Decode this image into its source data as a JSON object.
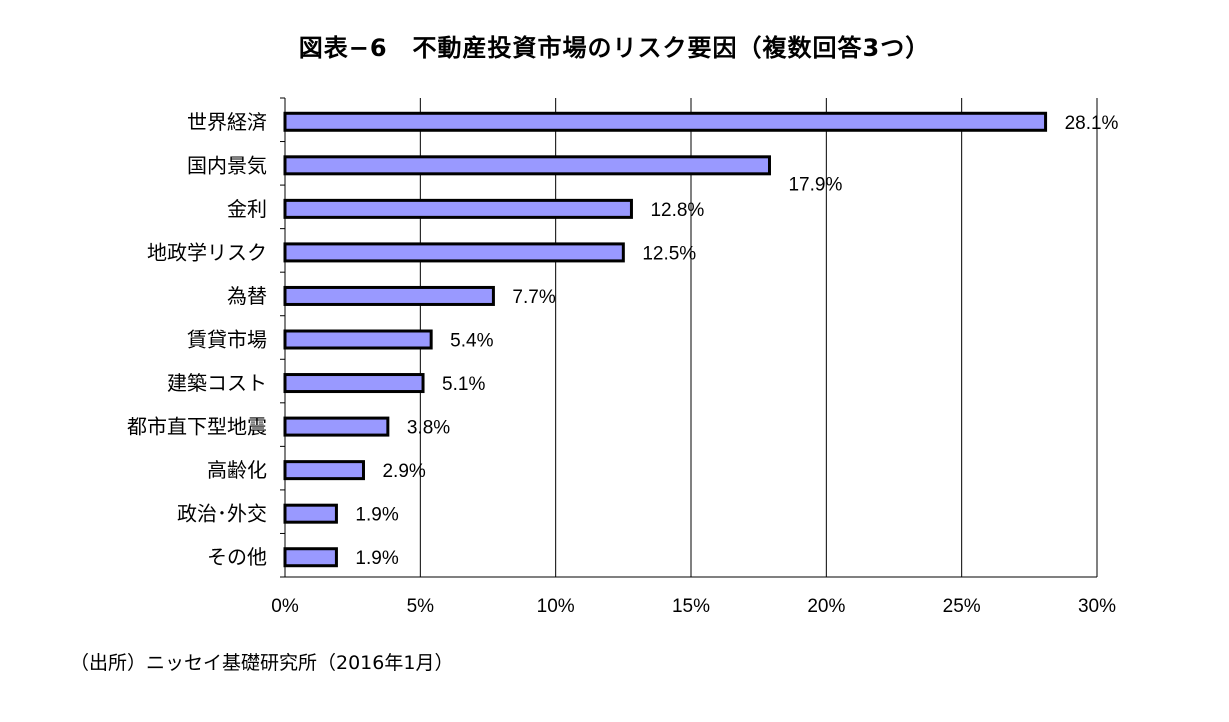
{
  "chart_data": {
    "type": "bar",
    "orientation": "horizontal",
    "title": "図表−6　不動産投資市場のリスク要因（複数回答3つ）",
    "categories": [
      "世界経済",
      "国内景気",
      "金利",
      "地政学リスク",
      "為替",
      "賃貸市場",
      "建築コスト",
      "都市直下型地震",
      "高齢化",
      "政治･外交",
      "その他"
    ],
    "values": [
      28.1,
      17.9,
      12.8,
      12.5,
      7.7,
      5.4,
      5.1,
      3.8,
      2.9,
      1.9,
      1.9
    ],
    "value_labels": [
      "28.1%",
      "17.9%",
      "12.8%",
      "12.5%",
      "7.7%",
      "5.4%",
      "5.1%",
      "3.8%",
      "2.9%",
      "1.9%",
      "1.9%"
    ],
    "xlim": [
      0,
      30
    ],
    "xticks": [
      0,
      5,
      10,
      15,
      20,
      25,
      30
    ],
    "xtick_labels": [
      "0%",
      "5%",
      "10%",
      "15%",
      "20%",
      "25%",
      "30%"
    ],
    "xlabel": "",
    "ylabel": "",
    "grid": "vertical",
    "legend": "none",
    "bar_color": "#9999ff",
    "bar_edge_color": "#000000"
  },
  "source_note": "（出所）ニッセイ基礎研究所（2016年1月）"
}
